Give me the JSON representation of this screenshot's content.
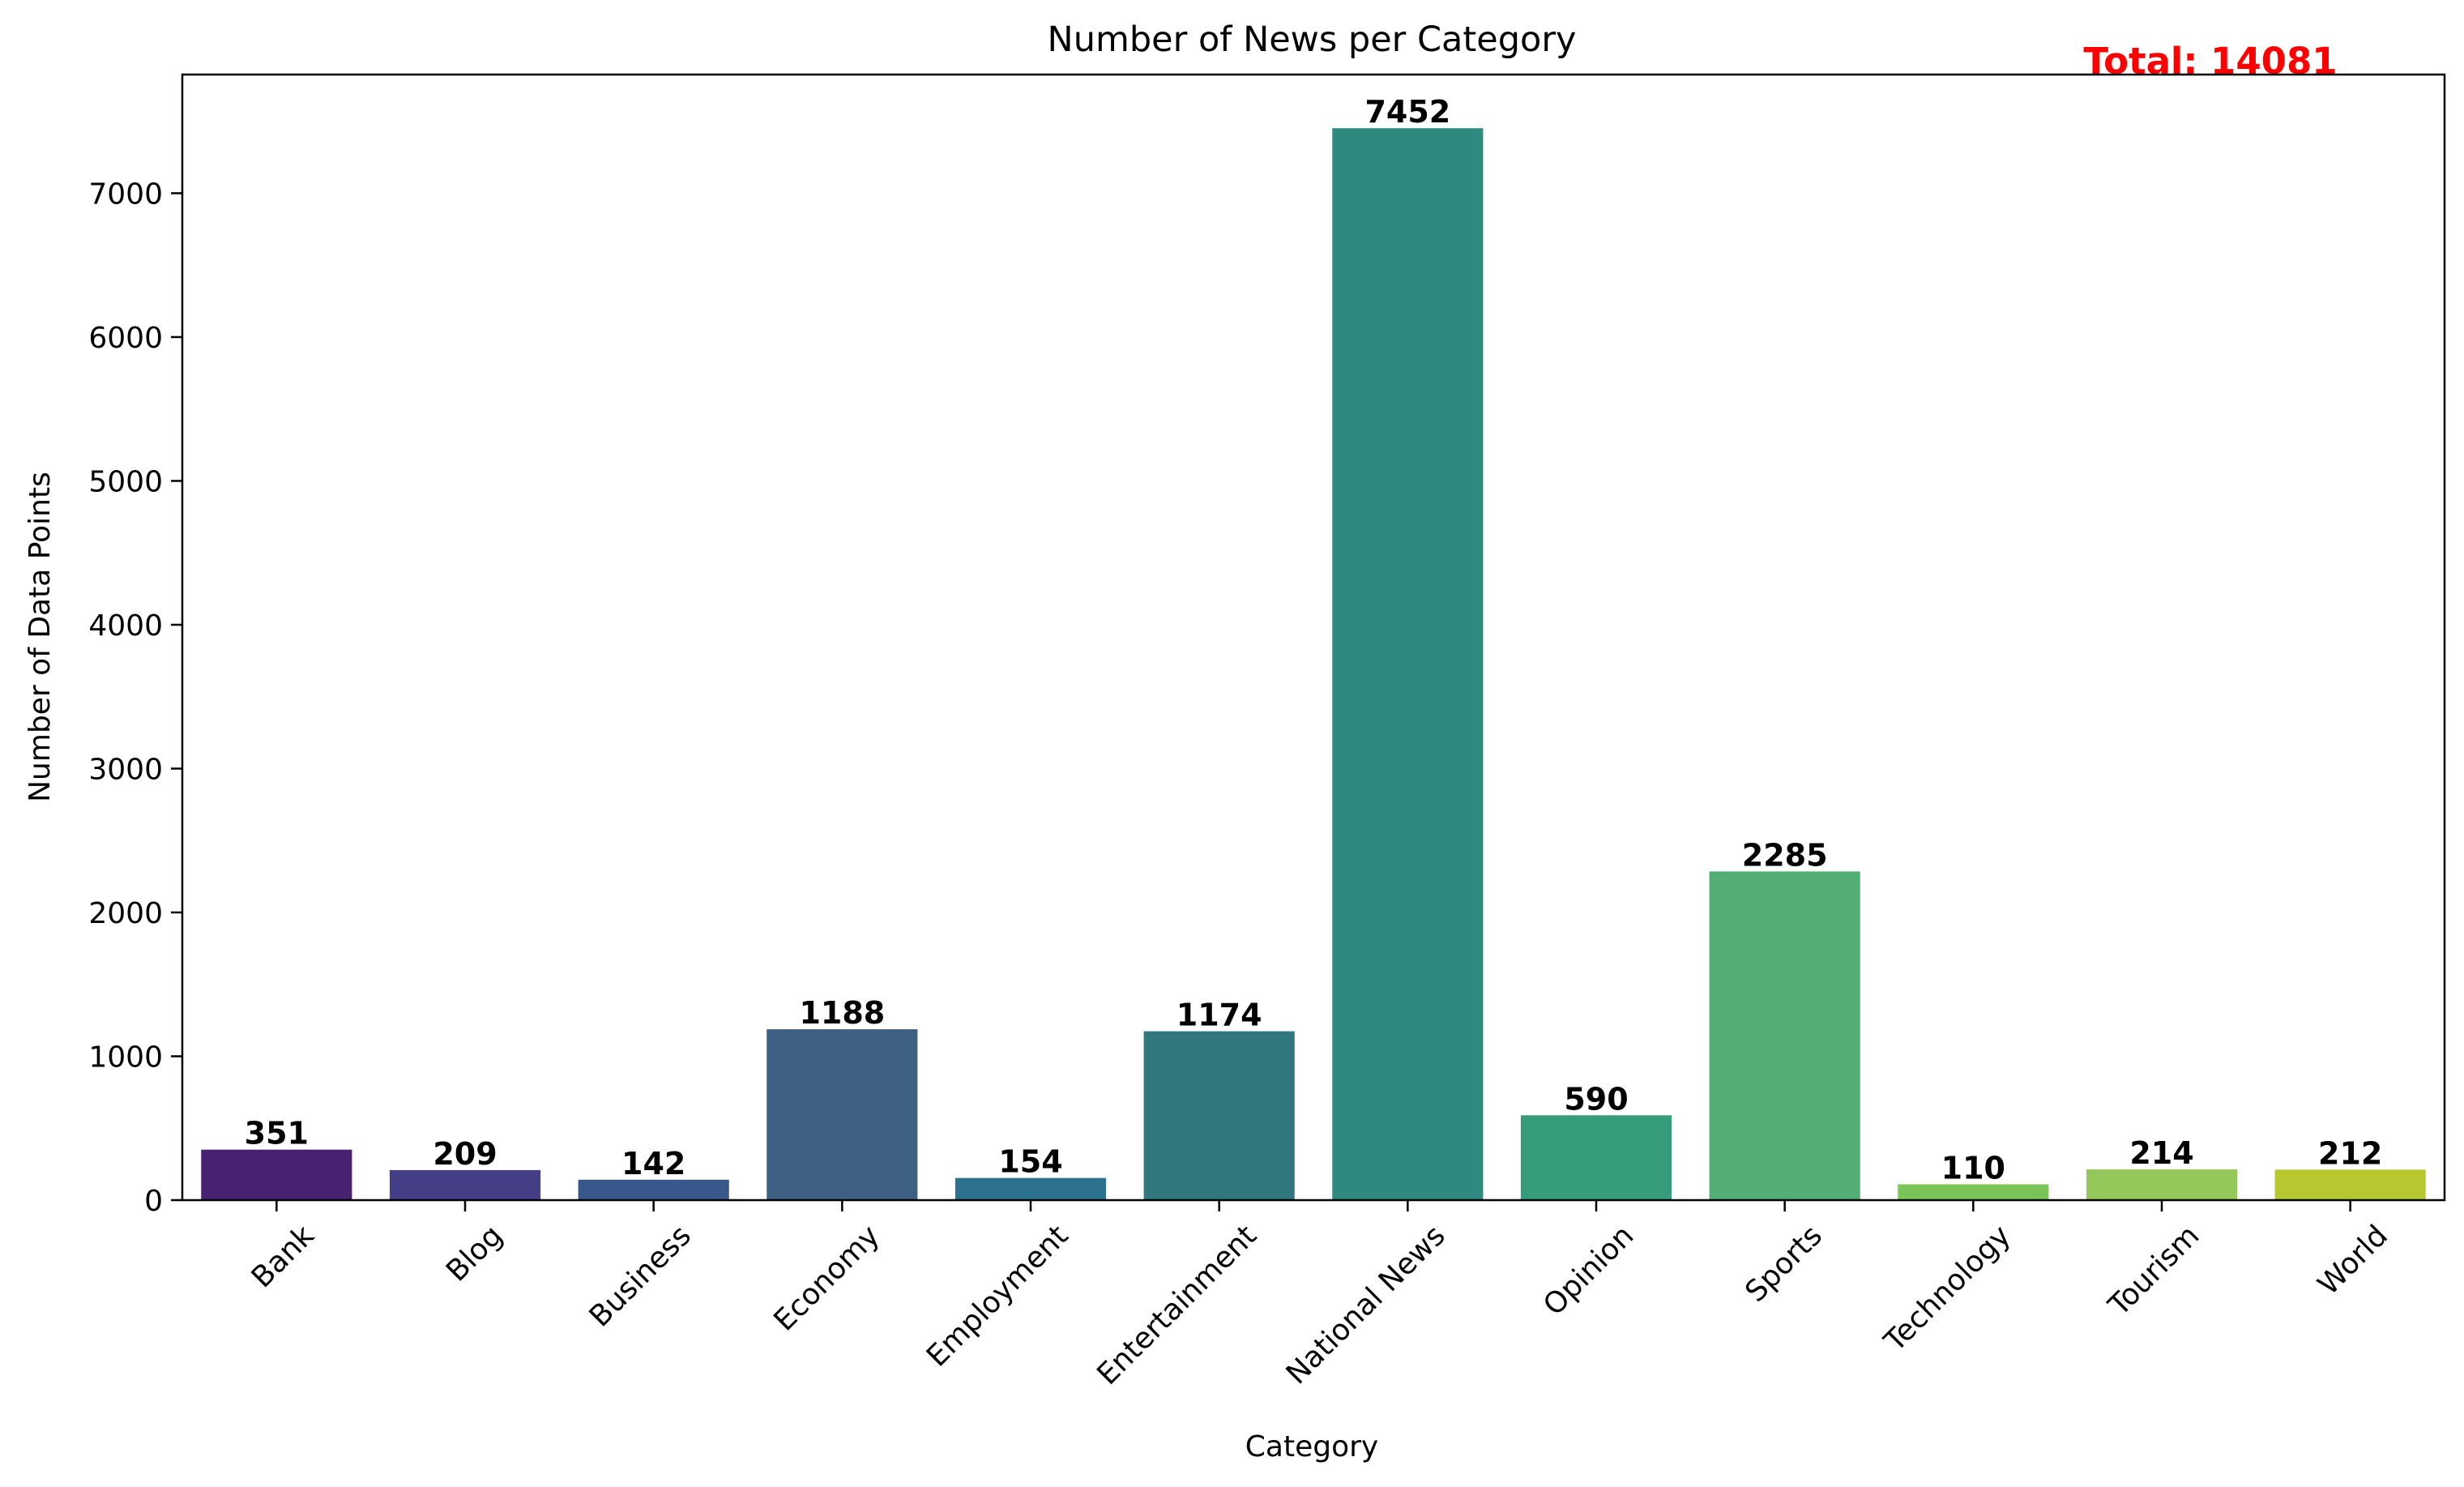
{
  "chart_data": {
    "type": "bar",
    "title": "Number of News per Category",
    "xlabel": "Category",
    "ylabel": "Number of Data Points",
    "categories": [
      "Bank",
      "Blog",
      "Business",
      "Economy",
      "Employment",
      "Entertainment",
      "National News",
      "Opinion",
      "Sports",
      "Technology",
      "Tourism",
      "World"
    ],
    "values": [
      351,
      209,
      142,
      1188,
      154,
      1174,
      7452,
      590,
      2285,
      110,
      214,
      212
    ],
    "value_labels": [
      "351",
      "209",
      "142",
      "1188",
      "154",
      "1174",
      "7452",
      "590",
      "2285",
      "110",
      "214",
      "212"
    ],
    "colors": [
      "#482173",
      "#433e85",
      "#38588c",
      "#3e6183",
      "#2c728e",
      "#31777e",
      "#2e8a7f",
      "#369c7c",
      "#52ae74",
      "#7ac558",
      "#95c85a",
      "#b7c72f"
    ],
    "ylim": [
      0,
      7825
    ],
    "yticks": [
      0,
      1000,
      2000,
      3000,
      4000,
      5000,
      6000,
      7000
    ],
    "ytick_labels": [
      "0",
      "1000",
      "2000",
      "3000",
      "4000",
      "5000",
      "6000",
      "7000"
    ],
    "grid": false,
    "legend": "none",
    "annotation": {
      "text": "Total: 14081",
      "color": "#ff0000"
    }
  }
}
